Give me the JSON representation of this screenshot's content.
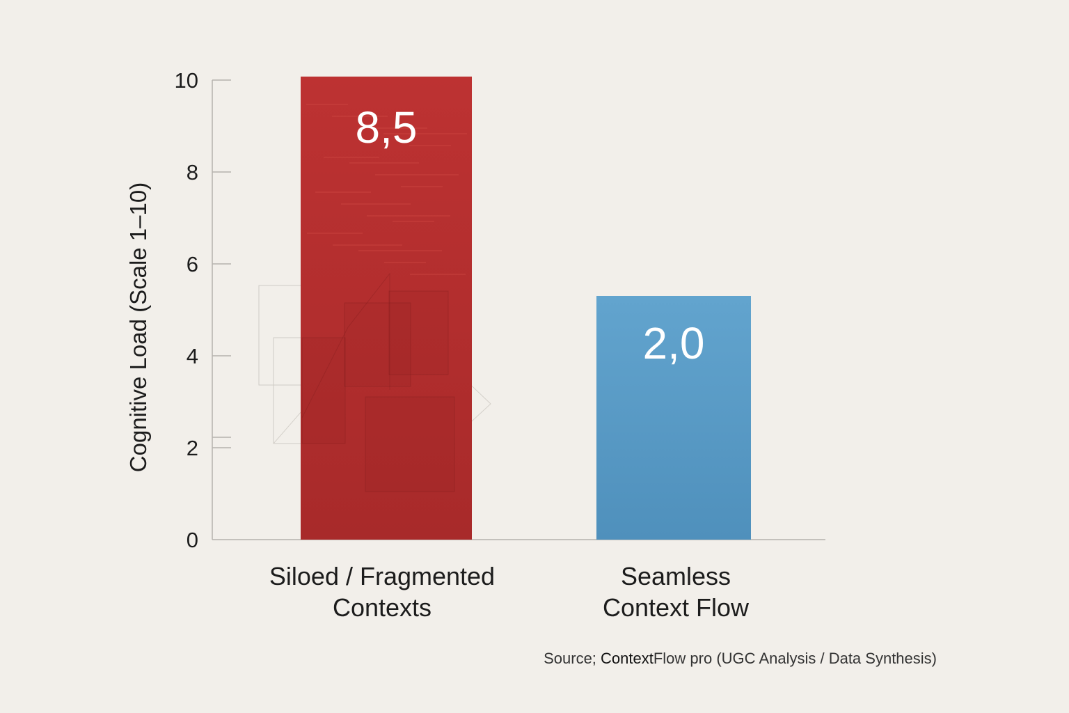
{
  "chart_data": {
    "type": "bar",
    "categories": [
      "Siloed / Fragmented Contexts",
      "Seamless Context Flow"
    ],
    "category_lines": [
      [
        "Siloed / Fragmented",
        "Contexts"
      ],
      [
        "Seamless",
        "Context Flow"
      ]
    ],
    "values": [
      8.5,
      2.0
    ],
    "value_labels": [
      "8,5",
      "2,0"
    ],
    "bar_colors": [
      "#b8302f",
      "#5b9dc6"
    ],
    "ylabel": "Cognitive Load (Scale 1–10)",
    "xlabel": "",
    "yticks": [
      0,
      2,
      4,
      6,
      8,
      10
    ],
    "ylim": [
      0,
      10
    ],
    "grid": false,
    "source": {
      "prefix": "Source; ",
      "brand_bold": "Context",
      "rest": "Flow pro (UGC Analysis / Data Synthesis)"
    }
  }
}
